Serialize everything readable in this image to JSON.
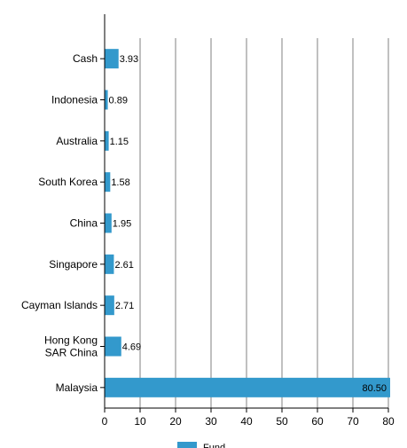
{
  "chart_data": {
    "type": "bar",
    "orientation": "horizontal",
    "categories": [
      "Cash",
      "Indonesia",
      "Australia",
      "South Korea",
      "China",
      "Singapore",
      "Cayman Islands",
      "Hong Kong SAR China",
      "Malaysia"
    ],
    "category_label_lines": [
      [
        "Cash"
      ],
      [
        "Indonesia"
      ],
      [
        "Australia"
      ],
      [
        "South Korea"
      ],
      [
        "China"
      ],
      [
        "Singapore"
      ],
      [
        "Cayman Islands"
      ],
      [
        "Hong Kong",
        "SAR China"
      ],
      [
        "Malaysia"
      ]
    ],
    "series": [
      {
        "name": "Fund",
        "values": [
          3.93,
          0.89,
          1.15,
          1.58,
          1.95,
          2.61,
          2.71,
          4.69,
          80.5
        ],
        "value_labels": [
          "3.93",
          "0.89",
          "1.15",
          "1.58",
          "1.95",
          "2.61",
          "2.71",
          "4.69",
          "80.50"
        ],
        "color": "#3399cc"
      }
    ],
    "xlim": [
      0,
      80
    ],
    "xticks": [
      0,
      10,
      20,
      30,
      40,
      50,
      60,
      70,
      80
    ],
    "xtick_labels": [
      "0",
      "10",
      "20",
      "30",
      "40",
      "50",
      "60",
      "70",
      "80"
    ],
    "grid": true,
    "legend_position": "bottom-center",
    "title": "",
    "xlabel": "",
    "ylabel": ""
  }
}
